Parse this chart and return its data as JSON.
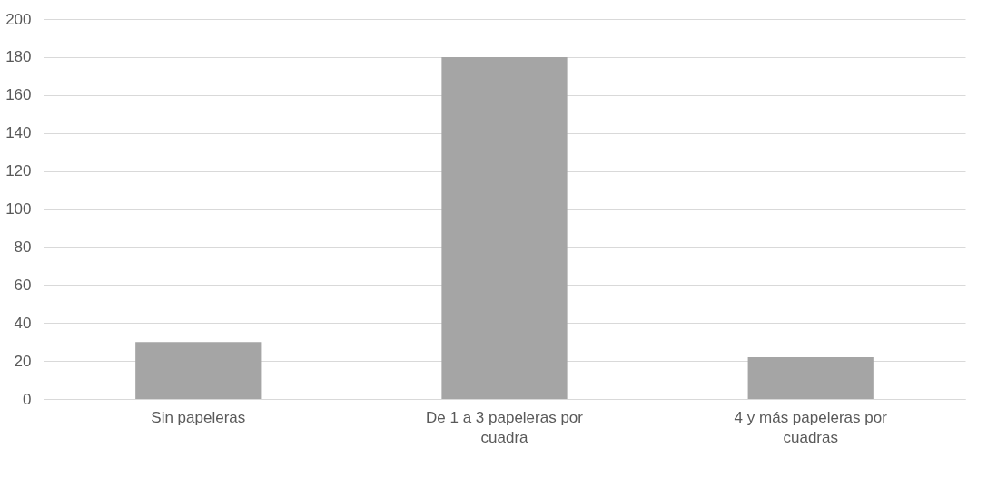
{
  "chart_data": {
    "type": "bar",
    "categories": [
      "Sin papeleras",
      "De 1 a 3 papeleras por cuadra",
      "4 y más papeleras por cuadras"
    ],
    "values": [
      30,
      180,
      22
    ],
    "color": "#a5a5a5",
    "ylim": [
      0,
      200
    ],
    "yticks": [
      0,
      20,
      40,
      60,
      80,
      100,
      120,
      140,
      160,
      180,
      200
    ],
    "grid": "y"
  }
}
